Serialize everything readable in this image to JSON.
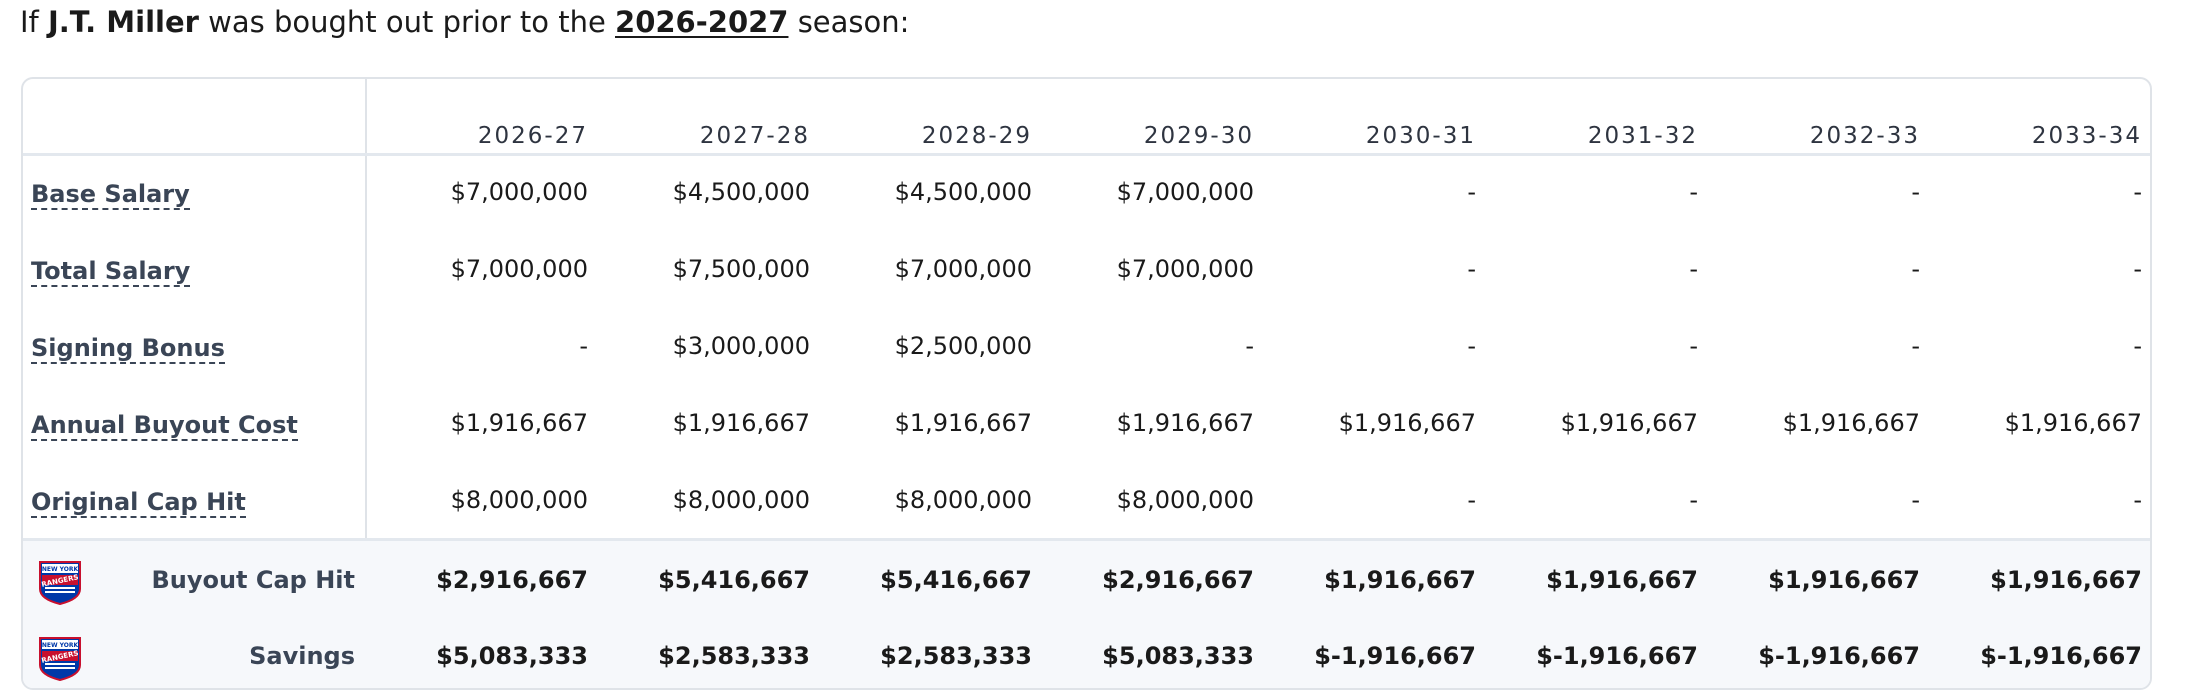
{
  "headline": {
    "prefix": "If ",
    "player": "J.T. Miller",
    "middle": " was bought out prior to the ",
    "season": "2026-2027",
    "suffix": " season:"
  },
  "team_logo": {
    "icon": "new-york-rangers-logo",
    "text_top": "NEW YORK",
    "text_main": "RANGERS"
  },
  "columns": [
    "2026-27",
    "2027-28",
    "2028-29",
    "2029-30",
    "2030-31",
    "2031-32",
    "2032-33",
    "2033-34"
  ],
  "rows": [
    {
      "label": "Base Salary",
      "values": [
        "$7,000,000",
        "$4,500,000",
        "$4,500,000",
        "$7,000,000",
        "-",
        "-",
        "-",
        "-"
      ]
    },
    {
      "label": "Total Salary",
      "values": [
        "$7,000,000",
        "$7,500,000",
        "$7,000,000",
        "$7,000,000",
        "-",
        "-",
        "-",
        "-"
      ]
    },
    {
      "label": "Signing Bonus",
      "values": [
        "-",
        "$3,000,000",
        "$2,500,000",
        "-",
        "-",
        "-",
        "-",
        "-"
      ]
    },
    {
      "label": "Annual Buyout Cost",
      "values": [
        "$1,916,667",
        "$1,916,667",
        "$1,916,667",
        "$1,916,667",
        "$1,916,667",
        "$1,916,667",
        "$1,916,667",
        "$1,916,667"
      ]
    },
    {
      "label": "Original Cap Hit",
      "values": [
        "$8,000,000",
        "$8,000,000",
        "$8,000,000",
        "$8,000,000",
        "-",
        "-",
        "-",
        "-"
      ]
    }
  ],
  "summary": [
    {
      "label": "Buyout Cap Hit",
      "values": [
        "$2,916,667",
        "$5,416,667",
        "$5,416,667",
        "$2,916,667",
        "$1,916,667",
        "$1,916,667",
        "$1,916,667",
        "$1,916,667"
      ]
    },
    {
      "label": "Savings",
      "values": [
        "$5,083,333",
        "$2,583,333",
        "$2,583,333",
        "$5,083,333",
        "$-1,916,667",
        "$-1,916,667",
        "$-1,916,667",
        "$-1,916,667"
      ]
    }
  ]
}
